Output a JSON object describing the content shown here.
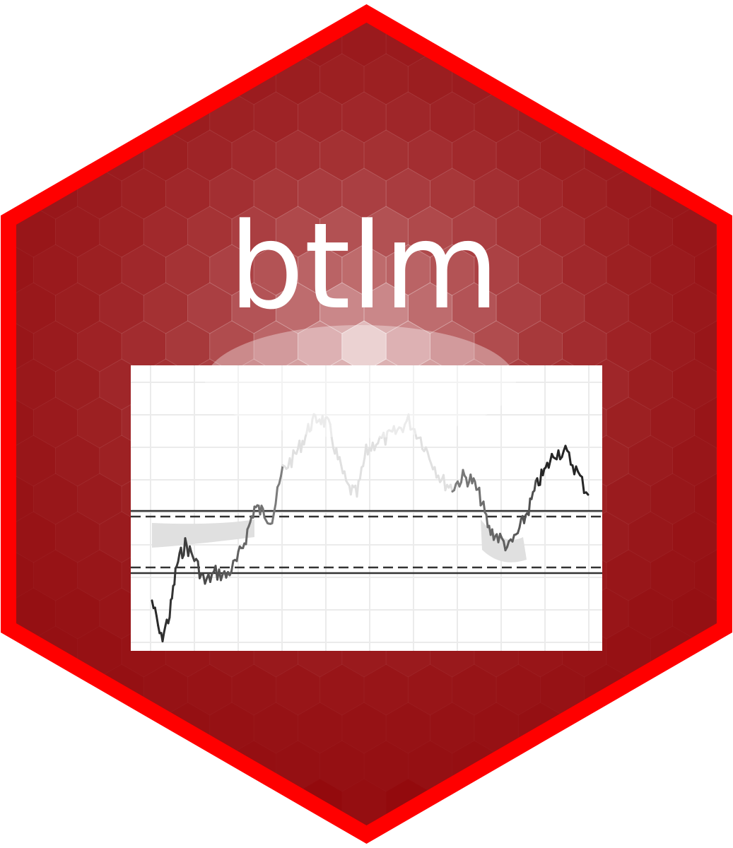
{
  "logo": {
    "title": "btlm",
    "colors": {
      "border": "#ff0000",
      "fill": "#930a0d",
      "glow": "#ffffff",
      "plot_background": "#ffffff",
      "grid": "#ebebeb",
      "line_dark": "#222222",
      "line_light": "#dddddd",
      "band": "#e0e0e0",
      "threshold": "#333333"
    },
    "icon": "hex-sticker-icon"
  }
}
